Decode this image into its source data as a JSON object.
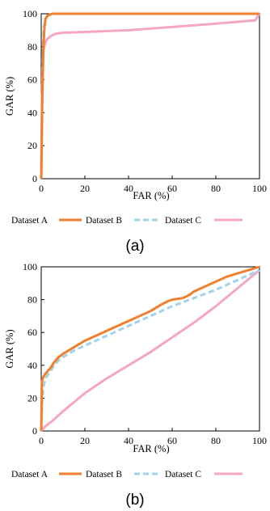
{
  "chart_data": [
    {
      "type": "line",
      "caption": "(a)",
      "xlabel": "FAR (%)",
      "ylabel": "GAR (%)",
      "xlim": [
        0,
        100
      ],
      "ylim": [
        0,
        100
      ],
      "xticks": [
        "0",
        "20",
        "40",
        "60",
        "80",
        "100"
      ],
      "yticks": [
        "0",
        "20",
        "40",
        "60",
        "80",
        "100"
      ],
      "grid": false,
      "legend_position": "bottom",
      "series": [
        {
          "name": "Dataset A",
          "color": "#f07f2e",
          "style": "solid",
          "x": [
            0,
            0.2,
            0.5,
            1,
            1.5,
            2,
            3,
            5,
            10,
            20,
            100
          ],
          "y": [
            0,
            20,
            50,
            80,
            92,
            97,
            99,
            100,
            100,
            100,
            100
          ]
        },
        {
          "name": "Dataset B",
          "color": "#9fd3ea",
          "style": "dashed",
          "x": [
            0,
            0.3,
            0.7,
            1,
            1.5,
            2,
            3,
            5,
            10,
            100
          ],
          "y": [
            0,
            40,
            75,
            88,
            94,
            97,
            99,
            100,
            100,
            100
          ]
        },
        {
          "name": "Dataset C",
          "color": "#f6a6c4",
          "style": "solid",
          "x": [
            0,
            0.3,
            0.7,
            1,
            2,
            3,
            5,
            7,
            10,
            20,
            40,
            60,
            80,
            98,
            99,
            100
          ],
          "y": [
            0,
            40,
            70,
            78,
            83,
            85,
            87,
            88,
            88.5,
            89,
            90,
            92,
            94,
            96,
            98,
            100
          ]
        }
      ]
    },
    {
      "type": "line",
      "caption": "(b)",
      "xlabel": "FAR (%)",
      "ylabel": "GAR (%)",
      "xlim": [
        0,
        100
      ],
      "ylim": [
        0,
        100
      ],
      "xticks": [
        "0",
        "20",
        "40",
        "60",
        "80",
        "100"
      ],
      "yticks": [
        "0",
        "20",
        "40",
        "60",
        "80",
        "100"
      ],
      "grid": false,
      "legend_position": "bottom",
      "series": [
        {
          "name": "Dataset A",
          "color": "#f07f2e",
          "style": "solid",
          "x": [
            0,
            0.3,
            1,
            2,
            4,
            6,
            8,
            10,
            15,
            20,
            30,
            40,
            50,
            55,
            58,
            60,
            65,
            68,
            70,
            75,
            80,
            85,
            90,
            95,
            100
          ],
          "y": [
            0,
            30,
            33,
            35,
            38,
            42,
            45,
            47,
            51,
            55,
            61,
            67,
            73,
            77,
            79,
            80,
            81,
            83,
            85,
            88,
            91,
            94,
            96,
            98,
            100
          ]
        },
        {
          "name": "Dataset B",
          "color": "#9fd3ea",
          "style": "dashed",
          "x": [
            0,
            0.5,
            1,
            2,
            4,
            6,
            8,
            10,
            15,
            20,
            30,
            40,
            50,
            60,
            70,
            80,
            90,
            100
          ],
          "y": [
            0,
            20,
            27,
            32,
            36,
            40,
            43,
            45,
            49,
            52,
            58,
            64,
            70,
            76,
            81,
            86,
            92,
            98
          ]
        },
        {
          "name": "Dataset C",
          "color": "#f6a6c4",
          "style": "solid",
          "x": [
            0,
            2,
            5,
            10,
            20,
            30,
            40,
            50,
            60,
            70,
            80,
            90,
            100
          ],
          "y": [
            0,
            3,
            6,
            12,
            23,
            32,
            40,
            48,
            57,
            66,
            76,
            87,
            98
          ]
        }
      ]
    }
  ]
}
